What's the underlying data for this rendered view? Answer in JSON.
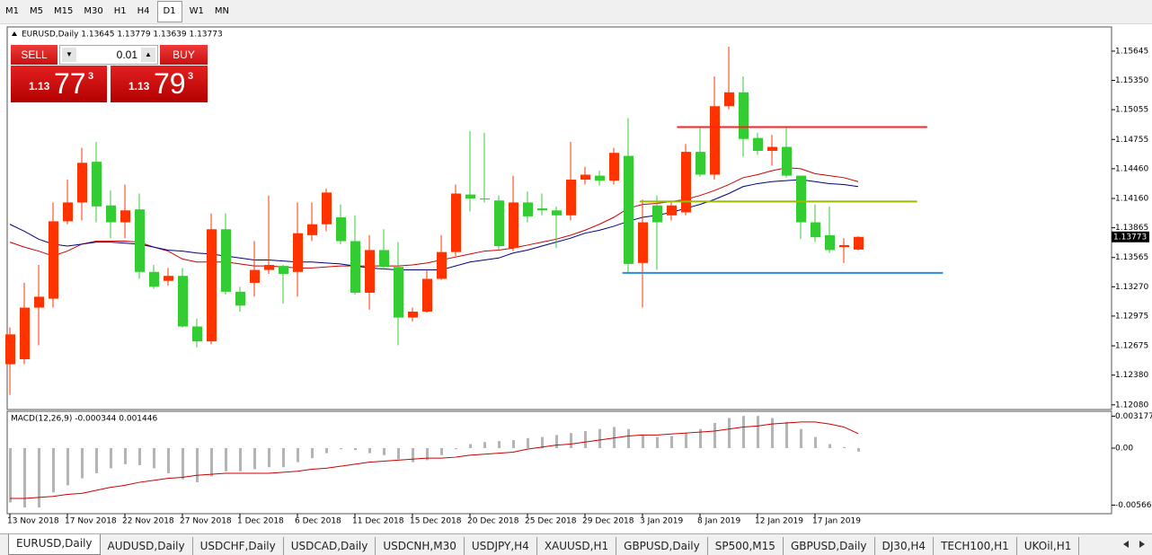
{
  "toolbar": {
    "timeframes": [
      "M1",
      "M5",
      "M15",
      "M30",
      "H1",
      "H4",
      "D1",
      "W1",
      "MN"
    ],
    "active": 6
  },
  "trade_panel": {
    "sell": "SELL",
    "buy": "BUY",
    "lot": "0.01",
    "sell_price": {
      "prefix": "1.13",
      "big": "77",
      "sup": "3"
    },
    "buy_price": {
      "prefix": "1.13",
      "big": "79",
      "sup": "3"
    }
  },
  "chart_data": [
    {
      "type": "candlestick",
      "title": "EURUSD,Daily  1.13645 1.13779 1.13639 1.13773",
      "categories": [
        "13 Nov 2018",
        null,
        null,
        null,
        "17 Nov 2018",
        null,
        null,
        null,
        "22 Nov 2018",
        null,
        null,
        null,
        "27 Nov 2018",
        null,
        null,
        null,
        "1 Dec 2018",
        null,
        null,
        null,
        "6 Dec 2018",
        null,
        null,
        null,
        "11 Dec 2018",
        null,
        null,
        null,
        "15 Dec 2018",
        null,
        null,
        null,
        "20 Dec 2018",
        null,
        null,
        null,
        "25 Dec 2018",
        null,
        null,
        null,
        "29 Dec 2018",
        null,
        null,
        null,
        "3 Jan 2019",
        null,
        null,
        null,
        "8 Jan 2019",
        null,
        null,
        null,
        "12 Jan 2019",
        null,
        null,
        null,
        "17 Jan 2019",
        null,
        null,
        null
      ],
      "open": [
        1.1249,
        1.1254,
        1.1306,
        1.1315,
        1.1393,
        1.1412,
        1.1453,
        1.1409,
        1.1392,
        1.1405,
        1.1342,
        1.1333,
        1.1338,
        1.1287,
        1.1272,
        1.1385,
        1.1322,
        1.1331,
        1.1344,
        1.1348,
        1.1342,
        1.1379,
        1.139,
        1.1397,
        1.1373,
        1.1321,
        1.1364,
        1.1347,
        1.1296,
        1.1302,
        1.1335,
        1.1362,
        1.142,
        1.1416,
        1.1414,
        1.1366,
        1.1412,
        1.1406,
        1.1404,
        1.1399,
        1.1435,
        1.1439,
        1.1434,
        1.1459,
        1.1351,
        1.1409,
        1.1399,
        1.1402,
        1.1463,
        1.144,
        1.1509,
        1.1523,
        1.1477,
        1.1464,
        1.1468,
        1.1439,
        1.1392,
        1.1379,
        1.1367,
        1.13645
      ],
      "high": [
        1.1286,
        1.1331,
        1.1349,
        1.1412,
        1.1435,
        1.1467,
        1.1473,
        1.1424,
        1.143,
        1.1421,
        1.1349,
        1.1346,
        1.1346,
        1.1295,
        1.1401,
        1.1401,
        1.1327,
        1.1373,
        1.1419,
        1.1349,
        1.1412,
        1.1412,
        1.1426,
        1.141,
        1.1399,
        1.1379,
        1.1385,
        1.1372,
        1.1306,
        1.1344,
        1.1379,
        1.143,
        1.1484,
        1.1482,
        1.1419,
        1.1439,
        1.1423,
        1.1421,
        1.1408,
        1.1473,
        1.1448,
        1.1444,
        1.1467,
        1.1497,
        1.1415,
        1.1419,
        1.1412,
        1.1471,
        1.1487,
        1.1539,
        1.1569,
        1.1539,
        1.1482,
        1.148,
        1.1487,
        1.1439,
        1.141,
        1.1408,
        1.1376,
        1.13779
      ],
      "low": [
        1.1218,
        1.1249,
        1.1268,
        1.1306,
        1.139,
        1.1394,
        1.1392,
        1.1376,
        1.1376,
        1.1335,
        1.1325,
        1.1328,
        1.1286,
        1.1266,
        1.1269,
        1.1319,
        1.1302,
        1.1317,
        1.134,
        1.131,
        1.1317,
        1.1373,
        1.1383,
        1.137,
        1.1319,
        1.1304,
        1.1344,
        1.1268,
        1.1292,
        1.1301,
        1.1334,
        1.1358,
        1.1403,
        1.1412,
        1.1364,
        1.1363,
        1.1392,
        1.1399,
        1.1366,
        1.1394,
        1.143,
        1.1429,
        1.143,
        1.134,
        1.1306,
        1.1344,
        1.1394,
        1.1399,
        1.1438,
        1.1435,
        1.1506,
        1.1458,
        1.146,
        1.1449,
        1.1437,
        1.1375,
        1.1372,
        1.1361,
        1.1351,
        1.13639
      ],
      "close": [
        1.1279,
        1.1306,
        1.1317,
        1.1393,
        1.1412,
        1.1452,
        1.1408,
        1.1392,
        1.1404,
        1.1342,
        1.1327,
        1.1338,
        1.1287,
        1.1272,
        1.1385,
        1.1322,
        1.1308,
        1.1344,
        1.1349,
        1.134,
        1.1381,
        1.139,
        1.1422,
        1.1373,
        1.1321,
        1.1364,
        1.1347,
        1.1296,
        1.1302,
        1.1335,
        1.1362,
        1.1421,
        1.1416,
        1.1415,
        1.1368,
        1.1412,
        1.1398,
        1.1404,
        1.1399,
        1.1435,
        1.144,
        1.1434,
        1.1462,
        1.135,
        1.1392,
        1.1392,
        1.1409,
        1.1463,
        1.144,
        1.1509,
        1.1523,
        1.1476,
        1.1464,
        1.1468,
        1.1439,
        1.1392,
        1.1377,
        1.1364,
        1.1369,
        1.13773
      ],
      "up_color": "#ff3300",
      "down_color": "#33cc33",
      "moving_averages": [
        {
          "color": "#cc0000",
          "values": [
            1.1372,
            1.1367,
            1.1363,
            1.1358,
            1.1363,
            1.137,
            1.1373,
            1.1373,
            1.1373,
            1.1372,
            1.1367,
            1.1363,
            1.1355,
            1.1352,
            1.1352,
            1.1352,
            1.135,
            1.1348,
            1.1348,
            1.1347,
            1.1346,
            1.1346,
            1.1347,
            1.1348,
            1.1348,
            1.1348,
            1.1348,
            1.1348,
            1.1349,
            1.1351,
            1.1354,
            1.1357,
            1.136,
            1.1363,
            1.1364,
            1.1366,
            1.1369,
            1.1372,
            1.1375,
            1.1379,
            1.1384,
            1.139,
            1.1397,
            1.1406,
            1.141,
            1.1411,
            1.1413,
            1.1415,
            1.1419,
            1.1424,
            1.143,
            1.1437,
            1.144,
            1.1444,
            1.1447,
            1.1446,
            1.1441,
            1.1439,
            1.1437,
            1.1433
          ]
        },
        {
          "color": "#000080",
          "values": [
            1.139,
            1.1383,
            1.1375,
            1.137,
            1.1368,
            1.137,
            1.1372,
            1.1372,
            1.1371,
            1.137,
            1.1367,
            1.1364,
            1.1363,
            1.1361,
            1.136,
            1.1358,
            1.1356,
            1.1354,
            1.1354,
            1.1353,
            1.1352,
            1.1352,
            1.1351,
            1.135,
            1.1348,
            1.1346,
            1.1345,
            1.1344,
            1.1344,
            1.1344,
            1.1344,
            1.1348,
            1.1352,
            1.1354,
            1.1356,
            1.1361,
            1.1364,
            1.1368,
            1.1372,
            1.1376,
            1.1381,
            1.1384,
            1.1388,
            1.1393,
            1.1397,
            1.1399,
            1.1402,
            1.1406,
            1.141,
            1.1415,
            1.1421,
            1.1428,
            1.1431,
            1.1433,
            1.1434,
            1.1435,
            1.1433,
            1.1431,
            1.143,
            1.1428
          ]
        }
      ],
      "levels": [
        {
          "value": 1.1488,
          "color": "#ff2020",
          "start": 46.4,
          "end": 63.8
        },
        {
          "value": 1.1413,
          "color": "#99bb00",
          "start": 43.8,
          "end": 63.1
        },
        {
          "value": 1.1341,
          "color": "#2a8be8",
          "start": 42.6,
          "end": 64.9
        }
      ],
      "ylim": [
        1.12033,
        1.15889
      ],
      "yticks": [
        1.15645,
        {
          "value": 1.1535,
          "label": "1.15350"
        },
        1.15055,
        1.14755,
        {
          "value": 1.1446,
          "label": "1.14460"
        },
        {
          "value": 1.1416,
          "label": "1.14160"
        },
        1.13865,
        1.13565,
        {
          "value": 1.1327,
          "label": "1.13270"
        },
        1.12975,
        1.12675,
        {
          "value": 1.1238,
          "label": "1.12380"
        },
        {
          "value": 1.1208,
          "label": "1.12080"
        }
      ],
      "last_price": 1.13773
    },
    {
      "type": "macd",
      "title": "MACD(12,26,9) -0.000344 0.001446",
      "histogram": {
        "color": "#b4b4b4",
        "values": [
          -0.0054,
          -0.0059,
          -0.0059,
          -0.0044,
          -0.0037,
          -0.003,
          -0.0025,
          -0.002,
          -0.0016,
          -0.0017,
          -0.002,
          -0.0025,
          -0.0031,
          -0.0034,
          -0.0028,
          -0.0023,
          -0.0023,
          -0.0021,
          -0.0019,
          -0.0019,
          -0.0014,
          -0.001,
          -0.0005,
          -0.0001,
          -0.0002,
          -0.0005,
          -0.0007,
          -0.0011,
          -0.0014,
          -0.0012,
          -0.0007,
          -0.0001,
          0.0004,
          0.0006,
          0.0007,
          0.0008,
          0.001,
          0.0011,
          0.0013,
          0.0015,
          0.0017,
          0.0019,
          0.0021,
          0.0019,
          0.0013,
          0.0011,
          0.0012,
          0.0015,
          0.0019,
          0.0025,
          0.003,
          0.0032,
          0.0032,
          0.003,
          0.0026,
          0.0019,
          0.0011,
          0.0004,
          0.0001,
          -0.000344
        ]
      },
      "signal": {
        "color": "#cc0000",
        "values": [
          -0.005,
          -0.005,
          -0.0049,
          -0.0048,
          -0.0046,
          -0.0045,
          -0.0042,
          -0.0039,
          -0.0037,
          -0.0034,
          -0.0032,
          -0.003,
          -0.0029,
          -0.0027,
          -0.0026,
          -0.0025,
          -0.0025,
          -0.0025,
          -0.0025,
          -0.0024,
          -0.0023,
          -0.0021,
          -0.002,
          -0.0018,
          -0.0016,
          -0.0014,
          -0.0013,
          -0.0012,
          -0.0011,
          -0.001,
          -0.001,
          -0.0009,
          -0.0007,
          -0.0006,
          -0.0005,
          -0.0004,
          -0.0001,
          0.0001,
          0.0003,
          0.0004,
          0.0006,
          0.0008,
          0.001,
          0.0012,
          0.0013,
          0.0013,
          0.0014,
          0.0015,
          0.0016,
          0.0017,
          0.0019,
          0.0021,
          0.0022,
          0.0024,
          0.0025,
          0.0026,
          0.0026,
          0.0024,
          0.0021,
          0.001446
        ]
      },
      "ylim": [
        -0.00652,
        0.00366
      ],
      "yticks": [
        0.003177,
        {
          "value": 0,
          "label": "0.00"
        },
        -0.005667
      ]
    }
  ],
  "tabs": {
    "items": [
      "EURUSD,Daily",
      "AUDUSD,Daily",
      "USDCHF,Daily",
      "USDCAD,Daily",
      "USDCNH,M30",
      "USDJPY,H4",
      "XAUUSD,H1",
      "GBPUSD,Daily",
      "SP500,M15",
      "GBPUSD,Daily",
      "DJ30,H4",
      "TECH100,H1",
      "UKOil,H1"
    ],
    "active": 0
  }
}
